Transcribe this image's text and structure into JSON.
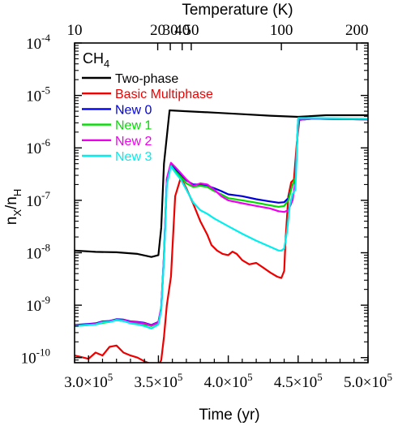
{
  "chart_data": {
    "type": "line",
    "species": "CH4",
    "xlabel": "Time (yr)",
    "ylabel": "nX/nH",
    "top_xlabel": "Temperature (K)",
    "x_scale": "linear",
    "y_scale": "log",
    "xlim": [
      290000,
      500000
    ],
    "ylim": [
      8e-11,
      0.0001
    ],
    "x_ticks": [
      {
        "value": 300000,
        "mant": "3.0",
        "exp": "5"
      },
      {
        "value": 350000,
        "mant": "3.5",
        "exp": "5"
      },
      {
        "value": 400000,
        "mant": "4.0",
        "exp": "5"
      },
      {
        "value": 450000,
        "mant": "4.5",
        "exp": "5"
      },
      {
        "value": 500000,
        "mant": "5.0",
        "exp": "5"
      }
    ],
    "y_ticks": [
      {
        "value": 0.0001,
        "exp": "-4"
      },
      {
        "value": 1e-05,
        "exp": "-5"
      },
      {
        "value": 1e-06,
        "exp": "-6"
      },
      {
        "value": 1e-07,
        "exp": "-7"
      },
      {
        "value": 1e-08,
        "exp": "-8"
      },
      {
        "value": 1e-09,
        "exp": "-9"
      },
      {
        "value": 1e-10,
        "exp": "-10"
      }
    ],
    "top_ticks": [
      {
        "label": "10",
        "time": 290000
      },
      {
        "label": "20",
        "time": 349500
      },
      {
        "label": "30",
        "time": 358500
      },
      {
        "label": "40",
        "time": 367000
      },
      {
        "label": "50",
        "time": 373500
      },
      {
        "label": "100",
        "time": 438000
      },
      {
        "label": "200",
        "time": 492000
      }
    ],
    "series": [
      {
        "name": "Two-phase",
        "color": "#000000",
        "x": [
          290000,
          305000,
          320000,
          335000,
          345000,
          350000,
          352000,
          354000,
          358000,
          370000,
          390000,
          410000,
          430000,
          450000,
          470000,
          500000
        ],
        "y": [
          1.1e-08,
          1.04e-08,
          1.02e-08,
          9.5e-09,
          8.3e-09,
          9e-09,
          3e-08,
          5e-07,
          5.2e-06,
          5e-06,
          4.7e-06,
          4.4e-06,
          4.1e-06,
          3.9e-06,
          4.2e-06,
          4.2e-06
        ]
      },
      {
        "name": "Basic Multiphase",
        "color": "#ee0000",
        "x": [
          290000,
          300000,
          305000,
          310000,
          315000,
          320000,
          325000,
          330000,
          335000,
          340000,
          345000,
          350000,
          352000,
          354000,
          356000,
          359000,
          362000,
          366000,
          370000,
          375000,
          380000,
          385000,
          388000,
          392000,
          396000,
          400000,
          403000,
          406000,
          410000,
          415000,
          420000,
          425000,
          430000,
          435000,
          438000,
          440000,
          441000,
          443000,
          445000,
          447000,
          449000,
          451000,
          460000,
          500000
        ],
        "y": [
          1.1e-10,
          9.5e-11,
          1.25e-10,
          1.1e-10,
          1.6e-10,
          1.7e-10,
          1.25e-10,
          1.1e-10,
          1e-10,
          8.5e-11,
          7.5e-11,
          7e-11,
          9e-11,
          2.5e-10,
          1e-09,
          3.5e-09,
          1.2e-07,
          2.7e-07,
          1.7e-07,
          8.5e-08,
          4e-08,
          2.2e-08,
          1.4e-08,
          1.1e-08,
          9.5e-09,
          9e-09,
          1.05e-08,
          9.5e-09,
          7.2e-09,
          6e-09,
          6.4e-09,
          5.2e-09,
          4.2e-09,
          3.5e-09,
          3.3e-09,
          4.5e-09,
          1.8e-08,
          1.2e-07,
          2.2e-07,
          2.5e-07,
          1.2e-06,
          3.6e-06,
          3.6e-06,
          3.5e-06
        ]
      },
      {
        "name": "New 0",
        "color": "#0000dd",
        "x": [
          290000,
          300000,
          305000,
          310000,
          315000,
          320000,
          325000,
          330000,
          335000,
          340000,
          345000,
          350000,
          352000,
          354000,
          356000,
          359000,
          362000,
          366000,
          370000,
          375000,
          380000,
          385000,
          390000,
          395000,
          400000,
          410000,
          420000,
          430000,
          436000,
          440000,
          443000,
          446000,
          448000,
          450000,
          460000,
          500000
        ],
        "y": [
          4.2e-10,
          4.4e-10,
          4.5e-10,
          4.9e-10,
          5e-10,
          5.4e-10,
          5.3e-10,
          4.9e-10,
          4.8e-10,
          4.6e-10,
          4.2e-10,
          4.8e-10,
          9e-10,
          9e-09,
          2.5e-07,
          5e-07,
          4e-07,
          3.1e-07,
          2.4e-07,
          2e-07,
          2e-07,
          1.9e-07,
          1.7e-07,
          1.5e-07,
          1.3e-07,
          1.2e-07,
          1.05e-07,
          9.5e-08,
          9e-08,
          9.2e-08,
          1.1e-07,
          2e-07,
          2.5e-07,
          3.4e-06,
          3.6e-06,
          3.5e-06
        ]
      },
      {
        "name": "New 1",
        "color": "#00dd00",
        "x": [
          290000,
          300000,
          305000,
          310000,
          315000,
          320000,
          325000,
          330000,
          335000,
          340000,
          345000,
          350000,
          352000,
          354000,
          356000,
          359000,
          362000,
          366000,
          370000,
          375000,
          380000,
          385000,
          390000,
          395000,
          400000,
          410000,
          420000,
          430000,
          436000,
          440000,
          443000,
          446000,
          448000,
          450000,
          460000,
          500000
        ],
        "y": [
          4e-10,
          4.2e-10,
          4.3e-10,
          4.6e-10,
          4.8e-10,
          5.2e-10,
          5e-10,
          4.6e-10,
          4.5e-10,
          4.3e-10,
          4e-10,
          4.6e-10,
          8.5e-10,
          8.5e-09,
          2.4e-07,
          4.6e-07,
          3.6e-07,
          2.8e-07,
          2.1e-07,
          1.8e-07,
          1.9e-07,
          1.8e-07,
          1.5e-07,
          1.3e-07,
          1.1e-07,
          1e-07,
          9e-08,
          8e-08,
          7.5e-08,
          7.8e-08,
          1e-07,
          2e-07,
          2.7e-07,
          3.4e-06,
          3.6e-06,
          3.5e-06
        ]
      },
      {
        "name": "New 2",
        "color": "#ee00ee",
        "x": [
          290000,
          300000,
          305000,
          310000,
          315000,
          320000,
          325000,
          330000,
          335000,
          340000,
          345000,
          350000,
          352000,
          354000,
          356000,
          359000,
          362000,
          366000,
          370000,
          375000,
          380000,
          385000,
          390000,
          395000,
          400000,
          410000,
          420000,
          430000,
          436000,
          440000,
          443000,
          446000,
          448000,
          450000,
          460000,
          500000
        ],
        "y": [
          4.1e-10,
          4.3e-10,
          4.4e-10,
          4.8e-10,
          4.9e-10,
          5.3e-10,
          5.2e-10,
          4.8e-10,
          4.7e-10,
          4.5e-10,
          4.1e-10,
          4.7e-10,
          8.8e-10,
          8.8e-09,
          2.6e-07,
          5.2e-07,
          4.3e-07,
          3.3e-07,
          2.5e-07,
          1.9e-07,
          2.1e-07,
          2e-07,
          1.6e-07,
          1.2e-07,
          1e-07,
          8.8e-08,
          7.8e-08,
          7e-08,
          6.2e-08,
          6e-08,
          6.5e-08,
          1e-07,
          2.3e-07,
          3.4e-06,
          3.6e-06,
          3.5e-06
        ]
      },
      {
        "name": "New 3",
        "color": "#00eeee",
        "x": [
          290000,
          300000,
          305000,
          310000,
          315000,
          320000,
          325000,
          330000,
          335000,
          340000,
          345000,
          350000,
          352000,
          354000,
          356000,
          359000,
          362000,
          366000,
          370000,
          375000,
          380000,
          385000,
          390000,
          400000,
          410000,
          420000,
          430000,
          436000,
          438000,
          440000,
          442000,
          444000,
          446000,
          448000,
          450000,
          460000,
          500000
        ],
        "y": [
          4e-10,
          4.2e-10,
          4.3e-10,
          4.7e-10,
          4.8e-10,
          5.2e-10,
          5e-10,
          4.5e-10,
          4.3e-10,
          4e-10,
          3.6e-10,
          4.3e-10,
          8e-10,
          8e-09,
          2e-07,
          4.5e-07,
          3.4e-07,
          2.5e-07,
          1.6e-07,
          9e-08,
          6.5e-08,
          5.5e-08,
          4.5e-08,
          3.2e-08,
          2.3e-08,
          1.7e-08,
          1.3e-08,
          1.1e-08,
          1.1e-08,
          1.2e-08,
          2.5e-08,
          8e-08,
          1.3e-07,
          1.6e-07,
          3.7e-06,
          3.7e-06,
          3.6e-06
        ]
      }
    ]
  }
}
